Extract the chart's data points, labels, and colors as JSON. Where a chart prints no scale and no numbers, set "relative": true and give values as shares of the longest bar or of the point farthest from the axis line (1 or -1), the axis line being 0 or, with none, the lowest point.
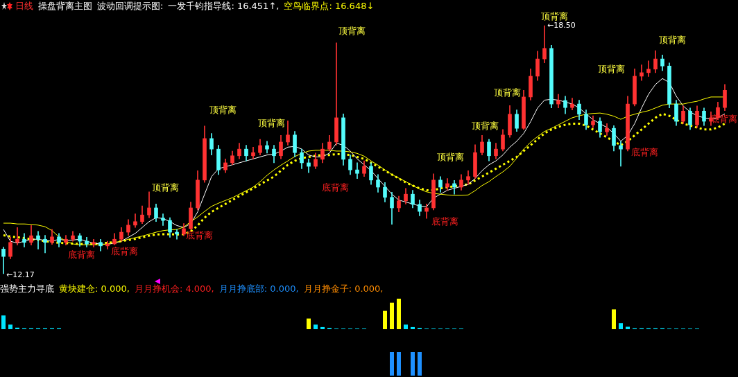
{
  "chart_data": [
    {
      "type": "candlestick",
      "legend": false,
      "tick_labels": false,
      "marker": "none",
      "categories": [
        null,
        null,
        null,
        null,
        null,
        null,
        null,
        null,
        null,
        null,
        null,
        null,
        null,
        null,
        null,
        null,
        null,
        null,
        null,
        null,
        null,
        null,
        null,
        null,
        null,
        null,
        null,
        null,
        null,
        null,
        null,
        null,
        null,
        null,
        null,
        null,
        null,
        null,
        null,
        null,
        null,
        null,
        null,
        null,
        null,
        null,
        null,
        null,
        null,
        null,
        null,
        null,
        null,
        null,
        null,
        null,
        null,
        null,
        null,
        null,
        null,
        null,
        null,
        null,
        null,
        null,
        null,
        null,
        null,
        null,
        null,
        null,
        null,
        null,
        null,
        null,
        null,
        null,
        null,
        null,
        null,
        null,
        null,
        null,
        null,
        null,
        null,
        null,
        null,
        null,
        null,
        null,
        null,
        null,
        null,
        null,
        null,
        null,
        null,
        null,
        null,
        null,
        null,
        null,
        null
      ],
      "ohlc": [
        [
          12.8,
          12.85,
          12.17,
          12.61
        ],
        [
          12.61,
          13.1,
          12.55,
          12.97
        ],
        [
          12.97,
          13.35,
          12.9,
          13.05
        ],
        [
          13.05,
          13.2,
          12.85,
          12.97
        ],
        [
          12.97,
          13.4,
          12.9,
          13.14
        ],
        [
          13.14,
          13.25,
          12.8,
          13.05
        ],
        [
          13.05,
          13.15,
          12.7,
          12.97
        ],
        [
          12.97,
          13.3,
          12.92,
          13.11
        ],
        [
          13.11,
          13.2,
          12.85,
          12.97
        ],
        [
          12.97,
          13.15,
          12.9,
          13.05
        ],
        [
          13.05,
          13.25,
          13.0,
          13.14
        ],
        [
          13.14,
          13.2,
          12.87,
          13.0
        ],
        [
          13.0,
          13.1,
          12.85,
          12.93
        ],
        [
          12.93,
          13.05,
          12.85,
          12.97
        ],
        [
          12.97,
          13.05,
          12.75,
          12.88
        ],
        [
          12.88,
          13.0,
          12.8,
          12.93
        ],
        [
          12.93,
          13.2,
          12.91,
          13.05
        ],
        [
          13.05,
          13.35,
          13.0,
          13.23
        ],
        [
          13.23,
          13.55,
          13.15,
          13.41
        ],
        [
          13.41,
          13.7,
          13.35,
          13.5
        ],
        [
          13.5,
          13.9,
          13.45,
          13.67
        ],
        [
          13.67,
          14.26,
          13.6,
          13.85
        ],
        [
          13.85,
          13.95,
          13.5,
          13.59
        ],
        [
          13.59,
          13.7,
          13.4,
          13.53
        ],
        [
          13.53,
          13.6,
          13.1,
          13.23
        ],
        [
          13.23,
          13.3,
          13.05,
          13.18
        ],
        [
          13.18,
          13.45,
          13.14,
          13.32
        ],
        [
          13.32,
          14.0,
          13.3,
          13.85
        ],
        [
          13.85,
          14.8,
          13.8,
          14.56
        ],
        [
          14.56,
          15.94,
          14.5,
          15.62
        ],
        [
          15.62,
          15.75,
          15.2,
          15.35
        ],
        [
          15.35,
          15.45,
          14.7,
          14.82
        ],
        [
          14.82,
          15.1,
          14.75,
          15.0
        ],
        [
          15.0,
          15.3,
          14.95,
          15.18
        ],
        [
          15.18,
          15.5,
          15.1,
          15.35
        ],
        [
          15.35,
          15.45,
          15.05,
          15.18
        ],
        [
          15.18,
          15.4,
          15.1,
          15.26
        ],
        [
          15.26,
          15.6,
          15.2,
          15.44
        ],
        [
          15.44,
          15.55,
          15.25,
          15.35
        ],
        [
          15.35,
          15.45,
          15.0,
          15.18
        ],
        [
          15.18,
          15.7,
          15.1,
          15.53
        ],
        [
          15.53,
          16.07,
          15.45,
          15.71
        ],
        [
          15.71,
          15.8,
          15.15,
          15.26
        ],
        [
          15.26,
          15.35,
          14.85,
          15.0
        ],
        [
          15.0,
          15.1,
          14.75,
          14.91
        ],
        [
          14.91,
          15.25,
          14.85,
          15.09
        ],
        [
          15.09,
          15.5,
          15.0,
          15.35
        ],
        [
          15.35,
          15.7,
          15.3,
          15.53
        ],
        [
          15.53,
          18.06,
          15.45,
          16.15
        ],
        [
          16.15,
          16.25,
          14.94,
          15.09
        ],
        [
          15.09,
          15.2,
          14.7,
          14.82
        ],
        [
          14.82,
          15.0,
          14.6,
          14.73
        ],
        [
          14.73,
          15.05,
          14.65,
          14.91
        ],
        [
          14.91,
          15.0,
          14.45,
          14.56
        ],
        [
          14.56,
          14.7,
          14.25,
          14.38
        ],
        [
          14.38,
          14.5,
          14.0,
          14.12
        ],
        [
          14.12,
          14.25,
          13.43,
          13.85
        ],
        [
          13.85,
          14.15,
          13.75,
          14.03
        ],
        [
          14.03,
          14.35,
          13.95,
          14.2
        ],
        [
          14.2,
          14.3,
          13.85,
          13.94
        ],
        [
          13.94,
          14.05,
          13.65,
          13.76
        ],
        [
          13.76,
          13.95,
          13.58,
          13.85
        ],
        [
          13.85,
          14.72,
          13.8,
          14.56
        ],
        [
          14.56,
          14.65,
          14.25,
          14.38
        ],
        [
          14.38,
          14.6,
          14.3,
          14.47
        ],
        [
          14.47,
          14.55,
          14.2,
          14.38
        ],
        [
          14.38,
          14.7,
          14.3,
          14.56
        ],
        [
          14.56,
          14.8,
          14.45,
          14.65
        ],
        [
          14.65,
          15.46,
          14.6,
          15.26
        ],
        [
          15.26,
          15.7,
          15.2,
          15.53
        ],
        [
          15.53,
          15.6,
          15.05,
          15.18
        ],
        [
          15.18,
          15.5,
          15.1,
          15.35
        ],
        [
          15.35,
          15.85,
          15.3,
          15.71
        ],
        [
          15.71,
          16.46,
          15.65,
          16.24
        ],
        [
          16.24,
          16.35,
          15.8,
          15.88
        ],
        [
          15.88,
          16.85,
          15.85,
          16.68
        ],
        [
          16.68,
          17.4,
          16.6,
          17.21
        ],
        [
          17.21,
          17.85,
          17.1,
          17.65
        ],
        [
          17.65,
          18.5,
          17.55,
          17.92
        ],
        [
          17.92,
          18.0,
          16.4,
          16.5
        ],
        [
          16.5,
          16.75,
          16.4,
          16.59
        ],
        [
          16.59,
          16.7,
          16.25,
          16.41
        ],
        [
          16.41,
          16.65,
          16.35,
          16.5
        ],
        [
          16.5,
          16.6,
          16.1,
          16.24
        ],
        [
          16.24,
          16.35,
          15.85,
          15.97
        ],
        [
          15.97,
          16.2,
          15.9,
          16.06
        ],
        [
          16.06,
          16.15,
          15.65,
          15.79
        ],
        [
          15.79,
          16.0,
          15.7,
          15.88
        ],
        [
          15.88,
          15.95,
          15.3,
          15.44
        ],
        [
          15.44,
          15.55,
          14.91,
          15.35
        ],
        [
          15.35,
          16.7,
          15.3,
          16.5
        ],
        [
          16.5,
          17.4,
          16.45,
          17.21
        ],
        [
          17.21,
          17.5,
          17.1,
          17.3
        ],
        [
          17.3,
          17.6,
          17.2,
          17.39
        ],
        [
          17.39,
          17.86,
          17.3,
          17.65
        ],
        [
          17.65,
          17.75,
          17.35,
          17.47
        ],
        [
          17.47,
          17.55,
          16.4,
          16.5
        ],
        [
          16.5,
          16.6,
          15.95,
          16.06
        ],
        [
          16.06,
          16.45,
          16.0,
          16.32
        ],
        [
          16.32,
          16.4,
          15.85,
          15.97
        ],
        [
          15.97,
          16.45,
          15.9,
          16.32
        ],
        [
          16.32,
          16.4,
          15.95,
          16.06
        ],
        [
          16.06,
          16.3,
          15.95,
          16.15
        ],
        [
          16.15,
          16.55,
          16.1,
          16.41
        ],
        [
          16.41,
          17.0,
          16.33,
          16.85
        ]
      ],
      "value_labels": [
        "←12.17",
        null,
        null,
        null,
        null,
        null,
        null,
        null,
        null,
        null,
        null,
        null,
        null,
        null,
        null,
        null,
        null,
        null,
        null,
        null,
        null,
        null,
        null,
        null,
        null,
        null,
        null,
        null,
        null,
        null,
        null,
        null,
        null,
        null,
        null,
        null,
        null,
        null,
        null,
        null,
        null,
        null,
        null,
        null,
        null,
        null,
        null,
        null,
        null,
        null,
        null,
        null,
        null,
        null,
        null,
        null,
        null,
        null,
        null,
        null,
        null,
        null,
        null,
        null,
        null,
        null,
        null,
        null,
        null,
        null,
        null,
        null,
        null,
        null,
        null,
        null,
        null,
        null,
        "←18.50",
        null,
        null,
        null,
        null,
        null,
        null,
        null,
        null,
        null,
        null,
        null,
        null,
        null,
        null,
        null,
        null,
        null,
        null,
        null,
        null,
        null,
        null,
        null,
        null,
        null,
        null
      ],
      "series": [
        {
          "type": "line",
          "color": "#ffff00",
          "values": [
            13.46,
            13.46,
            13.44,
            13.44,
            13.43,
            13.41,
            13.37,
            13.27,
            13.11,
            13.0,
            12.93,
            12.91,
            12.91,
            12.91,
            12.91,
            12.93,
            12.97,
            13.0,
            13.05,
            13.09,
            13.13,
            13.18,
            13.23,
            13.27,
            13.29,
            13.3,
            13.36,
            13.5,
            13.62,
            13.76,
            13.89,
            13.97,
            14.04,
            14.11,
            14.2,
            14.29,
            14.38,
            14.52,
            14.68,
            14.82,
            14.94,
            15.05,
            15.16,
            15.24,
            15.3,
            15.32,
            15.32,
            15.32,
            15.3,
            15.3,
            15.28,
            15.24,
            15.17,
            15.05,
            14.94,
            14.82,
            14.7,
            14.61,
            14.52,
            14.42,
            14.33,
            14.26,
            14.22,
            14.2,
            14.18,
            14.17,
            14.17,
            14.18,
            14.29,
            14.42,
            14.52,
            14.65,
            14.77,
            14.91,
            15.12,
            15.35,
            15.53,
            15.67,
            15.8,
            15.88,
            15.97,
            16.06,
            16.15,
            16.2,
            16.24,
            16.26,
            16.27,
            16.24,
            16.19,
            16.11,
            16.19,
            16.24,
            16.29,
            16.33,
            16.4,
            16.47,
            16.5,
            16.5,
            16.5,
            16.54,
            16.57,
            16.63,
            16.68,
            16.68,
            16.68
          ]
        },
        {
          "type": "line",
          "color": "#ffffff",
          "values": [
            13.3,
            13.0,
            12.95,
            13.0,
            13.05,
            13.05,
            13.02,
            13.0,
            13.05,
            13.02,
            13.03,
            13.05,
            13.0,
            12.95,
            12.93,
            12.92,
            12.95,
            13.0,
            13.1,
            13.2,
            13.35,
            13.5,
            13.6,
            13.58,
            13.5,
            13.4,
            13.35,
            13.45,
            13.75,
            14.2,
            14.65,
            14.85,
            14.9,
            14.95,
            15.0,
            15.05,
            15.1,
            15.15,
            15.2,
            15.22,
            15.3,
            15.4,
            15.42,
            15.35,
            15.2,
            15.15,
            15.15,
            15.25,
            15.5,
            15.45,
            15.3,
            15.1,
            14.95,
            14.8,
            14.6,
            14.4,
            14.2,
            14.05,
            14.0,
            13.95,
            13.9,
            13.88,
            14.1,
            14.2,
            14.3,
            14.35,
            14.4,
            14.45,
            14.6,
            14.8,
            14.95,
            15.05,
            15.2,
            15.4,
            15.55,
            15.75,
            16.05,
            16.4,
            16.6,
            16.62,
            16.6,
            16.55,
            16.5,
            16.4,
            16.25,
            16.1,
            16.0,
            15.9,
            15.75,
            15.55,
            15.7,
            16.0,
            16.4,
            16.75,
            17.0,
            17.15,
            17.05,
            16.7,
            16.45,
            16.3,
            16.2,
            16.15,
            16.12,
            16.15,
            16.25
          ]
        },
        {
          "type": "line",
          "color": "#ffff00",
          "line_style": "dotted",
          "values": [
            13.15,
            13.12,
            13.1,
            13.08,
            13.05,
            13.03,
            13.0,
            12.98,
            12.96,
            12.95,
            12.94,
            12.93,
            12.93,
            12.93,
            12.94,
            12.96,
            12.98,
            13.0,
            13.03,
            13.06,
            13.1,
            13.14,
            13.17,
            13.18,
            13.18,
            13.17,
            13.18,
            13.25,
            13.4,
            13.6,
            13.75,
            13.85,
            13.95,
            14.05,
            14.15,
            14.25,
            14.35,
            14.45,
            14.55,
            14.65,
            14.8,
            14.95,
            15.05,
            15.12,
            15.15,
            15.18,
            15.2,
            15.2,
            15.22,
            15.22,
            15.2,
            15.15,
            15.1,
            15.0,
            14.9,
            14.8,
            14.7,
            14.6,
            14.5,
            14.42,
            14.35,
            14.3,
            14.3,
            14.35,
            14.38,
            14.4,
            null,
            14.45,
            14.55,
            14.65,
            14.75,
            14.85,
            14.95,
            15.05,
            15.15,
            15.3,
            15.45,
            15.6,
            15.75,
            15.85,
            15.92,
            15.97,
            16.0,
            16.0,
            15.95,
            15.85,
            15.75,
            15.65,
            15.55,
            15.45,
            15.55,
            15.7,
            15.85,
            16.0,
            16.15,
            16.25,
            16.2,
            16.1,
            16.0,
            15.95,
            15.9,
            15.85,
            15.85,
            15.9,
            16.0
          ]
        }
      ],
      "annotations": [
        "日线",
        "操盘背离主图",
        "波动回调提示图:",
        "一发千钧指导线: 16.451↑,",
        "空鸟临界点: 16.648↓",
        "底背离",
        "底背离",
        "顶背离",
        "底背离",
        "顶背离",
        "顶背离",
        "顶背离",
        "底背离",
        "底背离",
        "顶背离",
        "顶背离",
        "顶背离",
        "顶背离",
        "底背离",
        "顶背离",
        "顶背离",
        "底背离"
      ]
    },
    {
      "type": "bar",
      "relative": true,
      "stacked": true,
      "legend": false,
      "tick_labels": false,
      "categories": [
        null,
        null,
        null,
        null,
        null,
        null,
        null,
        null,
        null,
        null,
        null,
        null,
        null,
        null,
        null,
        null,
        null,
        null,
        null,
        null,
        null,
        null,
        null,
        null,
        null,
        null,
        null,
        null,
        null,
        null,
        null,
        null,
        null,
        null,
        null,
        null,
        null,
        null,
        null,
        null,
        null,
        null,
        null,
        null,
        null,
        null,
        null,
        null,
        null,
        null,
        null,
        null,
        null,
        null,
        null,
        null,
        null,
        null,
        null,
        null,
        null,
        null,
        null,
        null,
        null,
        null,
        null,
        null,
        null,
        null,
        null,
        null,
        null,
        null,
        null,
        null,
        null,
        null,
        null,
        null,
        null,
        null,
        null,
        null,
        null,
        null,
        null,
        null,
        null,
        null,
        null,
        null,
        null,
        null,
        null,
        null,
        null,
        null,
        null,
        null,
        null,
        null,
        null,
        null,
        null
      ],
      "series": [
        {
          "color": "#ffff00",
          "values": [
            null,
            null,
            null,
            null,
            null,
            null,
            null,
            null,
            null,
            null,
            null,
            null,
            null,
            null,
            null,
            null,
            null,
            null,
            null,
            null,
            null,
            null,
            null,
            null,
            null,
            null,
            null,
            null,
            null,
            null,
            null,
            null,
            null,
            null,
            null,
            null,
            null,
            null,
            null,
            null,
            null,
            null,
            null,
            null,
            0.35,
            null,
            null,
            null,
            null,
            null,
            null,
            null,
            null,
            null,
            null,
            0.6,
            0.87,
            1,
            null,
            null,
            null,
            null,
            null,
            null,
            null,
            null,
            null,
            null,
            null,
            null,
            null,
            null,
            null,
            null,
            null,
            null,
            null,
            null,
            null,
            null,
            null,
            null,
            null,
            null,
            null,
            null,
            null,
            null,
            0.65,
            null,
            null,
            null,
            null,
            null,
            null,
            null,
            null,
            null,
            null,
            null,
            null,
            null,
            null,
            null,
            null
          ]
        },
        {
          "color": "#00e5ff",
          "values": [
            0.45,
            0.15,
            0.05,
            0.03,
            0.03,
            0.03,
            0.03,
            0.03,
            0.03,
            null,
            null,
            null,
            null,
            null,
            null,
            null,
            null,
            null,
            null,
            null,
            null,
            null,
            null,
            null,
            null,
            null,
            null,
            null,
            null,
            null,
            null,
            null,
            null,
            null,
            null,
            null,
            null,
            null,
            null,
            null,
            null,
            null,
            null,
            null,
            null,
            0.15,
            0.07,
            0.04,
            0.02,
            0.02,
            0.02,
            0.02,
            0.02,
            null,
            null,
            null,
            null,
            null,
            0.15,
            0.07,
            0.04,
            0.02,
            0.02,
            0.02,
            0.02,
            0.02,
            0.02,
            null,
            null,
            null,
            null,
            null,
            null,
            null,
            null,
            null,
            null,
            null,
            null,
            null,
            null,
            null,
            null,
            null,
            null,
            null,
            null,
            null,
            null,
            0.2,
            0.08,
            0.03,
            0.03,
            0.03,
            0.03,
            0.03,
            0.02,
            0.02,
            0.02,
            0.02,
            0.02,
            null,
            null,
            null,
            null
          ]
        }
      ],
      "annotations": [
        "强势主力寻底",
        "黄块建仓: 0.000,",
        "月月挣机会: 4.000,",
        "月月挣底部: 0.000,",
        "月月挣金子: 0.000,"
      ]
    },
    {
      "type": "bar",
      "relative": true,
      "legend": false,
      "tick_labels": false,
      "color": "#1e90ff",
      "categories": [
        null,
        null,
        null,
        null,
        null,
        null,
        null,
        null,
        null,
        null,
        null,
        null,
        null,
        null,
        null,
        null,
        null,
        null,
        null,
        null,
        null,
        null,
        null,
        null,
        null,
        null,
        null,
        null,
        null,
        null,
        null,
        null,
        null,
        null,
        null,
        null,
        null,
        null,
        null,
        null,
        null,
        null,
        null,
        null,
        null,
        null,
        null,
        null,
        null,
        null,
        null,
        null,
        null,
        null,
        null,
        null,
        null,
        null,
        null,
        null,
        null,
        null,
        null,
        null,
        null,
        null,
        null,
        null,
        null,
        null,
        null,
        null,
        null,
        null,
        null,
        null,
        null,
        null,
        null,
        null,
        null,
        null,
        null,
        null,
        null,
        null,
        null,
        null,
        null,
        null,
        null,
        null,
        null,
        null,
        null,
        null,
        null,
        null,
        null,
        null,
        null,
        null,
        null,
        null,
        null
      ],
      "values": [
        null,
        null,
        null,
        null,
        null,
        null,
        null,
        null,
        null,
        null,
        null,
        null,
        null,
        null,
        null,
        null,
        null,
        null,
        null,
        null,
        null,
        null,
        null,
        null,
        null,
        null,
        null,
        null,
        null,
        null,
        null,
        null,
        null,
        null,
        null,
        null,
        null,
        null,
        null,
        null,
        null,
        null,
        null,
        null,
        null,
        null,
        null,
        null,
        null,
        null,
        null,
        null,
        null,
        null,
        null,
        null,
        1,
        1,
        null,
        1,
        1,
        null,
        null,
        null,
        null,
        null,
        null,
        null,
        null,
        null,
        null,
        null,
        null,
        null,
        null,
        null,
        null,
        null,
        null,
        null,
        null,
        null,
        null,
        null,
        null,
        null,
        null,
        null,
        null,
        null,
        null,
        null,
        null,
        null,
        null,
        null,
        null,
        null,
        null,
        null,
        null,
        null,
        null,
        null,
        null
      ]
    }
  ]
}
